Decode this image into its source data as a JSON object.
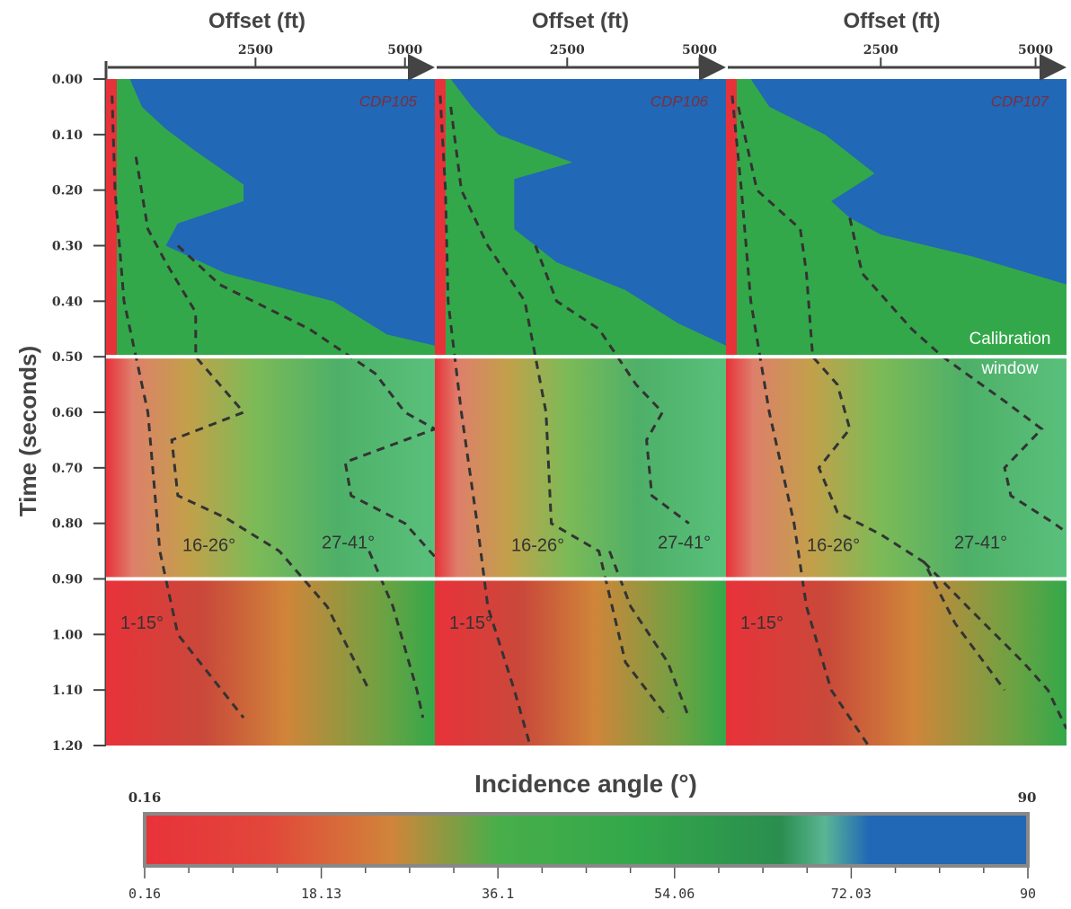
{
  "colorbar_colors": [
    "#e8323a",
    "#d0853a",
    "#33a84a",
    "#2a8e4e",
    "#2168b6"
  ],
  "chart_data": {
    "type": "heatmap",
    "y_axis": {
      "label": "Time (seconds)",
      "ticks": [
        "0.00",
        "0.10",
        "0.20",
        "0.30",
        "0.40",
        "0.50",
        "0.60",
        "0.70",
        "0.80",
        "0.90",
        "1.00",
        "1.10",
        "1.20"
      ],
      "range": [
        0.0,
        1.2
      ]
    },
    "x_axis": {
      "label": "Offset (ft)",
      "ticks": [
        "2500",
        "5000"
      ],
      "range": [
        0,
        5500
      ]
    },
    "panels": [
      {
        "name": "CDP105",
        "labels": {
          "a": "1-15°",
          "b": "16-26°",
          "c": "27-41°"
        },
        "contours": [
          {
            "angle": 15,
            "points": [
              [
                100,
                0.03
              ],
              [
                150,
                0.2
              ],
              [
                300,
                0.4
              ],
              [
                700,
                0.6
              ],
              [
                900,
                0.85
              ],
              [
                1200,
                1.0
              ],
              [
                2300,
                1.15
              ]
            ]
          },
          {
            "angle": 26,
            "points": [
              [
                500,
                0.14
              ],
              [
                700,
                0.27
              ],
              [
                1000,
                0.33
              ],
              [
                1500,
                0.42
              ],
              [
                1500,
                0.5
              ],
              [
                2300,
                0.6
              ],
              [
                1100,
                0.65
              ],
              [
                1200,
                0.75
              ],
              [
                2000,
                0.79
              ],
              [
                2900,
                0.85
              ],
              [
                3700,
                0.95
              ],
              [
                4400,
                1.1
              ]
            ]
          },
          {
            "angle": 41,
            "points": [
              [
                1200,
                0.3
              ],
              [
                1900,
                0.37
              ],
              [
                3400,
                0.45
              ],
              [
                4500,
                0.53
              ],
              [
                5000,
                0.6
              ],
              [
                5500,
                0.63
              ],
              [
                4000,
                0.69
              ],
              [
                4100,
                0.75
              ],
              [
                5000,
                0.8
              ],
              [
                5500,
                0.86
              ]
            ]
          },
          {
            "angle": 60,
            "points": [
              [
                4400,
                0.85
              ],
              [
                4800,
                0.95
              ],
              [
                5200,
                1.1
              ],
              [
                5300,
                1.15
              ]
            ]
          }
        ]
      },
      {
        "name": "CDP106",
        "labels": {
          "a": "1-15°",
          "b": "16-26°",
          "c": "27-41°"
        },
        "contours": [
          {
            "angle": 15,
            "points": [
              [
                100,
                0.03
              ],
              [
                200,
                0.2
              ],
              [
                250,
                0.4
              ],
              [
                500,
                0.6
              ],
              [
                800,
                0.8
              ],
              [
                1000,
                0.95
              ],
              [
                1500,
                1.1
              ],
              [
                1800,
                1.2
              ]
            ]
          },
          {
            "angle": 26,
            "points": [
              [
                300,
                0.05
              ],
              [
                500,
                0.2
              ],
              [
                1000,
                0.3
              ],
              [
                1700,
                0.4
              ],
              [
                1900,
                0.5
              ],
              [
                2100,
                0.6
              ],
              [
                2200,
                0.8
              ],
              [
                3100,
                0.85
              ],
              [
                3600,
                1.05
              ],
              [
                4400,
                1.15
              ]
            ]
          },
          {
            "angle": 41,
            "points": [
              [
                1900,
                0.3
              ],
              [
                2300,
                0.4
              ],
              [
                3100,
                0.45
              ],
              [
                3800,
                0.55
              ],
              [
                4300,
                0.6
              ],
              [
                4000,
                0.65
              ],
              [
                4100,
                0.75
              ],
              [
                4800,
                0.8
              ]
            ]
          },
          {
            "angle": 60,
            "points": [
              [
                3300,
                0.85
              ],
              [
                3700,
                0.95
              ],
              [
                4400,
                1.05
              ],
              [
                4800,
                1.15
              ]
            ]
          }
        ]
      },
      {
        "name": "CDP107",
        "labels": {
          "a": "1-15°",
          "b": "16-26°",
          "c": "27-41°"
        },
        "contours": [
          {
            "angle": 15,
            "points": [
              [
                100,
                0.03
              ],
              [
                250,
                0.2
              ],
              [
                400,
                0.4
              ],
              [
                700,
                0.6
              ],
              [
                1100,
                0.8
              ],
              [
                1300,
                0.95
              ],
              [
                1700,
                1.1
              ],
              [
                2300,
                1.2
              ]
            ]
          },
          {
            "angle": 26,
            "points": [
              [
                200,
                0.05
              ],
              [
                500,
                0.2
              ],
              [
                1200,
                0.27
              ],
              [
                1300,
                0.35
              ],
              [
                1400,
                0.5
              ],
              [
                1800,
                0.55
              ],
              [
                2000,
                0.63
              ],
              [
                1500,
                0.7
              ],
              [
                1800,
                0.78
              ],
              [
                2500,
                0.82
              ],
              [
                3200,
                0.87
              ],
              [
                3700,
                0.98
              ],
              [
                4500,
                1.1
              ]
            ]
          },
          {
            "angle": 41,
            "points": [
              [
                2000,
                0.25
              ],
              [
                2200,
                0.35
              ],
              [
                3000,
                0.45
              ],
              [
                3500,
                0.5
              ],
              [
                4500,
                0.58
              ],
              [
                5100,
                0.63
              ],
              [
                4500,
                0.7
              ],
              [
                4600,
                0.75
              ],
              [
                5300,
                0.8
              ],
              [
                5800,
                0.84
              ]
            ]
          },
          {
            "angle": 60,
            "points": [
              [
                3200,
                0.87
              ],
              [
                3900,
                0.95
              ],
              [
                4800,
                1.05
              ],
              [
                5200,
                1.1
              ],
              [
                5500,
                1.17
              ]
            ]
          }
        ]
      }
    ],
    "annotations": [
      "Calibration",
      "window"
    ],
    "calibration_window": [
      0.5,
      0.9
    ],
    "colorbar": {
      "title": "Incidence angle (°)",
      "min_label": "0.16",
      "max_label": "90",
      "ticks": [
        "0.16",
        "18.13",
        "36.1",
        "54.06",
        "72.03",
        "90"
      ],
      "range": [
        0.16,
        90
      ]
    }
  }
}
